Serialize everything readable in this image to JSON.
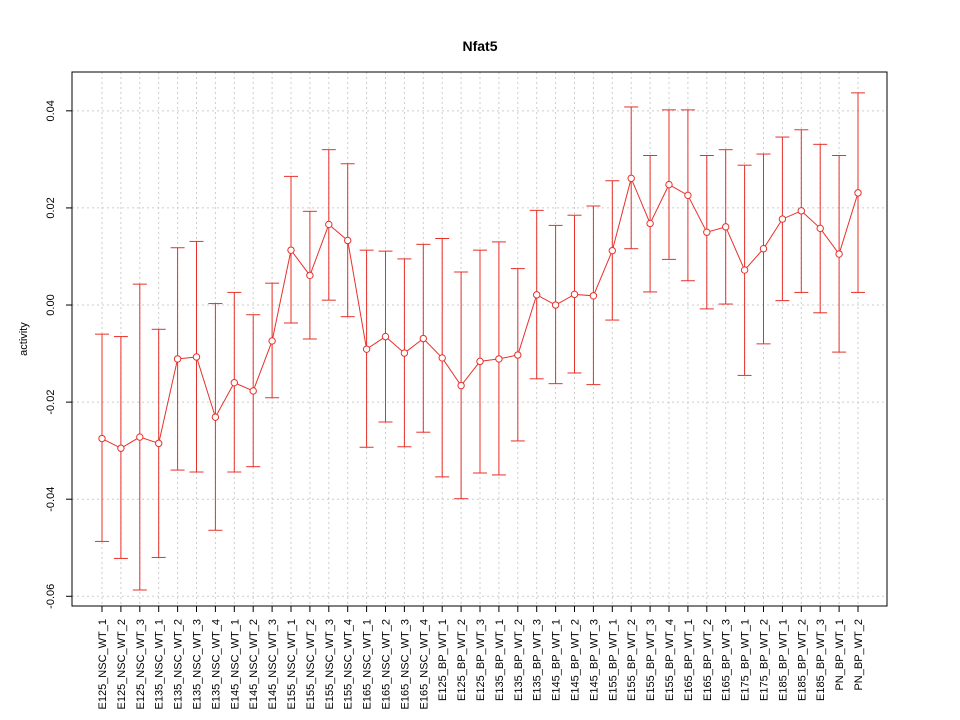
{
  "chart_data": {
    "type": "line",
    "title": "Nfat5",
    "xlabel": "",
    "ylabel": "activity",
    "ylim": [
      -0.062,
      0.048
    ],
    "y_ticks": [
      -0.06,
      -0.04,
      -0.02,
      0.0,
      0.02,
      0.04
    ],
    "y_tick_labels": [
      "-0.06",
      "-0.04",
      "-0.02",
      "0.00",
      "0.02",
      "0.04"
    ],
    "grid": true,
    "reference_line": 0,
    "series_color": "#e8302a",
    "grid_color": "#cccccc",
    "categories": [
      "E125_NSC_WT_1",
      "E125_NSC_WT_2",
      "E125_NSC_WT_3",
      "E135_NSC_WT_1",
      "E135_NSC_WT_2",
      "E135_NSC_WT_3",
      "E135_NSC_WT_4",
      "E145_NSC_WT_1",
      "E145_NSC_WT_2",
      "E145_NSC_WT_3",
      "E155_NSC_WT_1",
      "E155_NSC_WT_2",
      "E155_NSC_WT_3",
      "E155_NSC_WT_4",
      "E165_NSC_WT_1",
      "E165_NSC_WT_2",
      "E165_NSC_WT_3",
      "E165_NSC_WT_4",
      "E125_BP_WT_1",
      "E125_BP_WT_2",
      "E125_BP_WT_3",
      "E135_BP_WT_1",
      "E135_BP_WT_2",
      "E135_BP_WT_3",
      "E145_BP_WT_1",
      "E145_BP_WT_2",
      "E145_BP_WT_3",
      "E155_BP_WT_1",
      "E155_BP_WT_2",
      "E155_BP_WT_3",
      "E155_BP_WT_4",
      "E165_BP_WT_1",
      "E165_BP_WT_2",
      "E165_BP_WT_3",
      "E175_BP_WT_1",
      "E175_BP_WT_2",
      "E185_BP_WT_1",
      "E185_BP_WT_2",
      "E185_BP_WT_3",
      "PN_BP_WT_1",
      "PN_BP_WT_2"
    ],
    "series": [
      {
        "values": [
          -0.0275,
          -0.0295,
          -0.0272,
          -0.0285,
          -0.0111,
          -0.0107,
          -0.0231,
          -0.016,
          -0.0177,
          -0.0074,
          0.0113,
          0.0061,
          0.0166,
          0.0133,
          -0.0091,
          -0.0065,
          -0.0099,
          -0.0069,
          -0.0109,
          -0.0166,
          -0.0116,
          -0.0111,
          -0.0103,
          0.0021,
          0.0,
          0.0022,
          0.0019,
          0.0112,
          0.0261,
          0.0168,
          0.0248,
          0.0226,
          0.015,
          0.0161,
          0.0072,
          0.0116,
          0.0177,
          0.0194,
          0.0158,
          0.0105,
          0.0231
        ],
        "upper": [
          -0.006,
          -0.0065,
          0.0043,
          -0.005,
          0.0118,
          0.0131,
          0.0003,
          0.0026,
          -0.002,
          0.0045,
          0.0265,
          0.0193,
          0.032,
          0.0291,
          0.0113,
          0.0111,
          0.0095,
          0.0125,
          0.0137,
          0.0068,
          0.0113,
          0.013,
          0.0075,
          0.0195,
          0.0164,
          0.0185,
          0.0204,
          0.0256,
          0.0408,
          0.0308,
          0.0402,
          0.0402,
          0.0308,
          0.032,
          0.0288,
          0.0311,
          0.0346,
          0.0361,
          0.0331,
          0.0308,
          0.0437
        ],
        "lower": [
          -0.0487,
          -0.0522,
          -0.0587,
          -0.052,
          -0.034,
          -0.0344,
          -0.0464,
          -0.0344,
          -0.0333,
          -0.0191,
          -0.0037,
          -0.007,
          0.001,
          -0.0024,
          -0.0293,
          -0.0241,
          -0.0292,
          -0.0262,
          -0.0354,
          -0.0399,
          -0.0346,
          -0.035,
          -0.028,
          -0.0152,
          -0.0162,
          -0.014,
          -0.0164,
          -0.0031,
          0.0116,
          0.0027,
          0.0094,
          0.005,
          -0.0008,
          0.0002,
          -0.0145,
          -0.008,
          0.0009,
          0.0026,
          -0.0016,
          -0.0097,
          0.0026
        ]
      }
    ]
  }
}
